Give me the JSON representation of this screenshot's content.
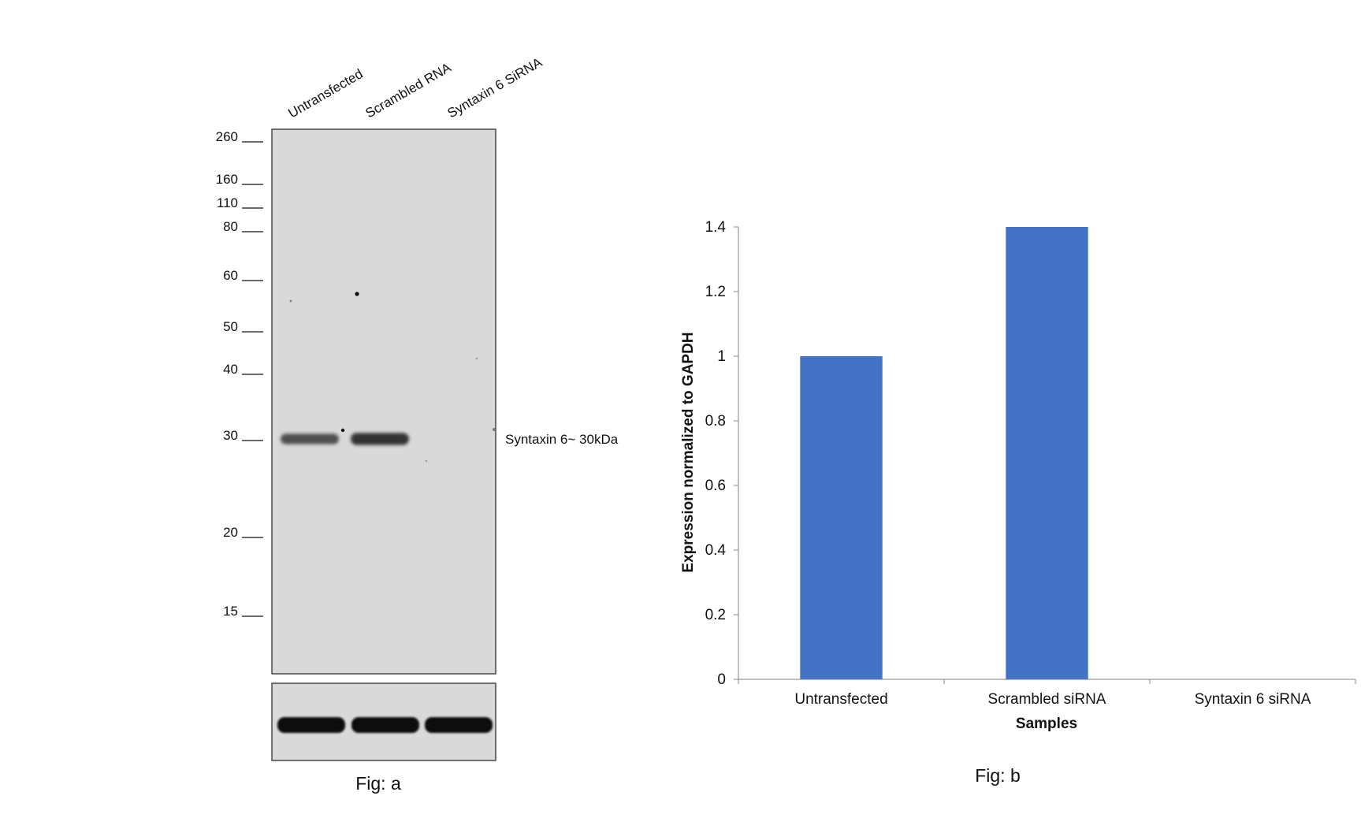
{
  "western_blot": {
    "lane_labels": [
      "Untransfected",
      "Scrambled RNA",
      "Syntaxin 6 SiRNA"
    ],
    "marker_labels": [
      "260",
      "160",
      "110",
      "80",
      "60",
      "50",
      "40",
      "30",
      "20",
      "15"
    ],
    "band_label": "Syntaxin 6~ 30kDa",
    "caption": "Fig: a",
    "main_band_intensity": [
      0.65,
      0.9,
      0.0
    ],
    "loading_band_intensity": [
      1.0,
      1.0,
      1.0
    ],
    "colors": {
      "membrane": "#d9d9d9",
      "band": "#0a0a0a"
    }
  },
  "chart_data": {
    "type": "bar",
    "categories": [
      "Untransfected",
      "Scrambled siRNA",
      "Syntaxin 6 siRNA"
    ],
    "values": [
      1.0,
      1.4,
      0.0
    ],
    "title": "",
    "xlabel": "Samples",
    "ylabel": "Expression normalized to GAPDH",
    "ylim": [
      0,
      1.4
    ],
    "yticks": [
      "0",
      "0.2",
      "0.4",
      "0.6",
      "0.8",
      "1",
      "1.2",
      "1.4"
    ],
    "grid": false,
    "legend": "none",
    "bar_color": "#4472c4",
    "caption": "Fig: b"
  }
}
